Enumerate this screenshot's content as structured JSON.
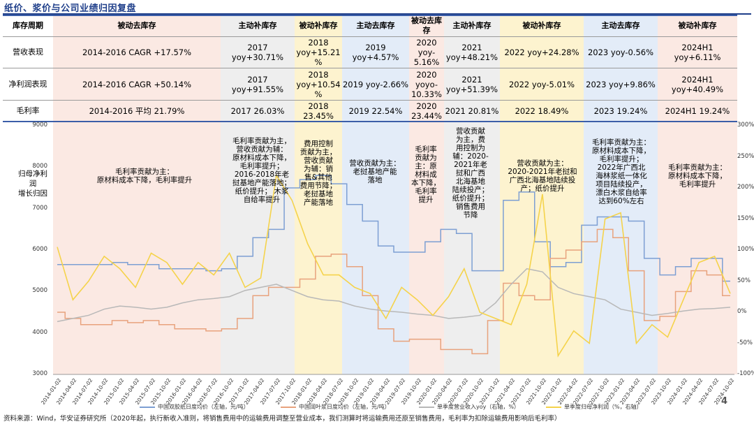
{
  "title": "纸价、浆价与公司业绩归因复盘",
  "header": {
    "row_label": "库存周期",
    "cycles": [
      "被动去库存",
      "主动补库存",
      "被动补库存",
      "主动去库存",
      "被动去库存",
      "主动补库存",
      "被动补库存",
      "主动去库存",
      "被动补库存"
    ]
  },
  "rows": [
    {
      "label": "营收表现",
      "cells": [
        "2014-2016 CAGR +17.57%",
        "2017\nyoy+30.71%",
        "2018\nyoy+15.21\n%",
        "2019 yoy+4.57%",
        "2020 yoy-\n5.16%",
        "2021\nyoy+48.21%",
        "2022 yoy+24.28%",
        "2023 yoy-0.56%",
        "2024H1\nyoy+6.11%"
      ]
    },
    {
      "label": "净利润表现",
      "cells": [
        "2014-2016 CAGR +50.14%",
        "2017\nyoy+91.55%",
        "2018\nyoy+10.54\n%",
        "2019 yoy-2.66%",
        "2020\nyoyo-\n10.33%",
        "2021\nyoy+51.39%",
        "2022 yoy-5.01%",
        "2023 yoy+9.86%",
        "2024H1\nyoy+40.49%"
      ]
    },
    {
      "label": "毛利率",
      "cells": [
        "2014-2016 平均 21.79%",
        "2017 26.03%",
        "2018\n23.45%",
        "2019 22.54%",
        "2020\n23.44%",
        "2021 20.81%",
        "2022 18.49%",
        "2023 19.24%",
        "2024H1 19.24%"
      ]
    }
  ],
  "y_axis_title": "归母净利润\n增长归因",
  "annotations": [
    "毛利率贡献为主：\n原材料成本下降，毛利率提升",
    "毛利率贡献为主，\n营收贡献为辅：\n原材料成本下降，\n毛利率提升；\n2016-2018年老\n挝基地产能落地；\n纸价提升；  木浆\n自给率提升",
    "费用控制\n贡献为主，\n营收贡献\n为辅：销\n售&其他\n费用节降；\n老挝基地\n产能落地",
    "营收贡献为主：\n老挝基地产能\n落地",
    "毛利率\n贡献为\n主：原\n材料成\n本下降，\n毛利率\n提升",
    "营收贡献\n为主，费\n用控制为\n辅：2020-\n2021年老\n挝和广西\n北海基地\n陆续投产；\n纸价提升；\n销售费用\n节降",
    "营收贡献为主：\n2020-2021年老挝和\n广西北海基地陆续投\n产；纸价提升",
    "毛利率贡献为主：\n原材料成本下降，\n毛利率提升；\n2022年广西北\n海林浆纸一体化\n项目陆续投产，\n漂白木浆自给率\n达到60%左右",
    "毛利率贡献为主：\n原材料成本下降，\n毛利率提升"
  ],
  "legend": [
    "中国双胶纸日度均价（左轴，元/吨）",
    "中国阔叶浆日度均价（左轴，元/吨）",
    "单季度营业收入yoy（右轴，%）",
    "单季度归母净利润（%，右轴）"
  ],
  "page_number": "4",
  "source": "资料来源：Wind，华安证券研究所（2020年起，执行新收入准则，将销售费用中的运输费用调整至营业成本，我们测算时将运输费用还原至销售费用，毛利率为扣除运输费用影响后毛利率）",
  "colors": {
    "band_pink": "#fbe9e3",
    "band_gray": "#eeeeee",
    "band_yellow": "#fdf3cf",
    "band_blue": "#e3ecf8",
    "paper": "#7d9fd3",
    "pulp": "#e8a27d",
    "revenue": "#b8b8b8",
    "profit": "#f5d34b"
  },
  "chart_data": {
    "type": "line",
    "x": [
      "2014-01-02",
      "2014-04-02",
      "2014-07-02",
      "2014-10-02",
      "2015-01-02",
      "2015-04-02",
      "2015-07-02",
      "2015-10-02",
      "2016-01-02",
      "2016-04-02",
      "2016-07-02",
      "2016-10-02",
      "2017-01-02",
      "2017-04-02",
      "2017-07-02",
      "2017-10-02",
      "2018-01-02",
      "2018-04-02",
      "2018-07-02",
      "2018-10-02",
      "2019-01-02",
      "2019-04-02",
      "2019-07-02",
      "2019-10-02",
      "2020-01-02",
      "2020-04-02",
      "2020-07-02",
      "2020-10-02",
      "2021-01-02",
      "2021-04-02",
      "2021-07-02",
      "2021-10-02",
      "2022-01-02",
      "2022-04-02",
      "2022-07-02",
      "2022-10-02",
      "2023-01-02",
      "2023-04-02",
      "2023-07-02",
      "2023-10-02",
      "2024-01-02",
      "2024-04-02",
      "2024-07-02",
      "2024-10-02"
    ],
    "y_left_range": [
      3000,
      9000
    ],
    "y_left_ticks": [
      3000,
      4000,
      5000,
      6000,
      7000,
      8000,
      9000
    ],
    "y_right_range": [
      -100,
      300
    ],
    "y_right_ticks": [
      "-100%",
      "-50%",
      "0%",
      "50%",
      "100%",
      "150%",
      "200%",
      "250%",
      "300%"
    ],
    "series": [
      {
        "name": "中国双胶纸日度均价（左轴，元/吨）",
        "axis": "left",
        "values": [
          5650,
          5650,
          5650,
          5650,
          5700,
          5650,
          5650,
          5550,
          5550,
          5550,
          5500,
          5550,
          5850,
          6300,
          6500,
          7500,
          7700,
          7800,
          7600,
          7100,
          6700,
          6100,
          5950,
          5950,
          6200,
          6500,
          6400,
          5500,
          5500,
          7200,
          7400,
          6200,
          5600,
          5700,
          6600,
          6800,
          6800,
          6700,
          5800,
          5400,
          5600,
          5800,
          5800,
          5250
        ]
      },
      {
        "name": "中国阔叶浆日度均价（左轴，元/吨）",
        "axis": "left",
        "values": [
          4500,
          4350,
          4200,
          4200,
          4300,
          4250,
          4300,
          4200,
          4100,
          4100,
          4050,
          4100,
          4350,
          4900,
          5100,
          5100,
          5300,
          5850,
          5900,
          5600,
          4900,
          4100,
          3800,
          3850,
          3850,
          3600,
          3600,
          3500,
          4300,
          5200,
          4900,
          4800,
          5800,
          6000,
          6200,
          6500,
          6300,
          5500,
          4300,
          4400,
          5000,
          5500,
          5400,
          4900
        ]
      },
      {
        "name": "单季度营业收入yoy（右轴，%）",
        "axis": "right",
        "values": [
          -15,
          -10,
          -5,
          5,
          10,
          8,
          5,
          8,
          15,
          20,
          22,
          25,
          35,
          40,
          45,
          35,
          25,
          20,
          18,
          10,
          5,
          2,
          0,
          -3,
          -5,
          -10,
          -8,
          -5,
          15,
          45,
          70,
          65,
          40,
          30,
          25,
          20,
          5,
          0,
          -5,
          -2,
          2,
          5,
          6,
          8
        ]
      },
      {
        "name": "单季度归母净利润（%，右轴）",
        "axis": "right",
        "values": [
          105,
          20,
          50,
          90,
          70,
          40,
          95,
          80,
          45,
          80,
          60,
          95,
          40,
          55,
          220,
          180,
          110,
          60,
          60,
          40,
          30,
          -10,
          40,
          20,
          -5,
          25,
          70,
          0,
          -10,
          -20,
          45,
          190,
          -70,
          -30,
          -50,
          150,
          160,
          -50,
          -20,
          -40,
          20,
          80,
          90,
          30
        ]
      }
    ]
  }
}
